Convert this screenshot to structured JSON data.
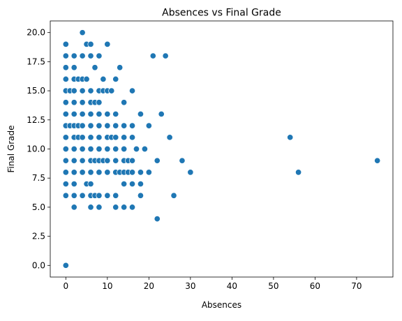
{
  "chart_data": {
    "type": "scatter",
    "title": "Absences vs Final Grade",
    "xlabel": "Absences",
    "ylabel": "Final Grade",
    "xlim": [
      -3.75,
      78.75
    ],
    "ylim": [
      -1.0,
      21.0
    ],
    "xticks": [
      0,
      10,
      20,
      30,
      40,
      50,
      60,
      70
    ],
    "yticks": [
      0.0,
      2.5,
      5.0,
      7.5,
      10.0,
      12.5,
      15.0,
      17.5,
      20.0
    ],
    "xtick_labels": [
      "0",
      "10",
      "20",
      "30",
      "40",
      "50",
      "60",
      "70"
    ],
    "ytick_labels": [
      "0.0",
      "2.5",
      "5.0",
      "7.5",
      "10.0",
      "12.5",
      "15.0",
      "17.5",
      "20.0"
    ],
    "grid": false,
    "marker_color": "#1f77b4",
    "points": [
      [
        0,
        0
      ],
      [
        0,
        6
      ],
      [
        0,
        7
      ],
      [
        0,
        8
      ],
      [
        0,
        9
      ],
      [
        0,
        10
      ],
      [
        0,
        11
      ],
      [
        0,
        12
      ],
      [
        0,
        13
      ],
      [
        0,
        14
      ],
      [
        0,
        15
      ],
      [
        0,
        16
      ],
      [
        0,
        17
      ],
      [
        0,
        18
      ],
      [
        0,
        19
      ],
      [
        1,
        12
      ],
      [
        1,
        15
      ],
      [
        2,
        5
      ],
      [
        2,
        6
      ],
      [
        2,
        7
      ],
      [
        2,
        8
      ],
      [
        2,
        9
      ],
      [
        2,
        10
      ],
      [
        2,
        11
      ],
      [
        2,
        12
      ],
      [
        2,
        13
      ],
      [
        2,
        14
      ],
      [
        2,
        15
      ],
      [
        2,
        16
      ],
      [
        2,
        17
      ],
      [
        2,
        18
      ],
      [
        3,
        11
      ],
      [
        3,
        12
      ],
      [
        3,
        16
      ],
      [
        4,
        6
      ],
      [
        4,
        8
      ],
      [
        4,
        9
      ],
      [
        4,
        10
      ],
      [
        4,
        11
      ],
      [
        4,
        12
      ],
      [
        4,
        13
      ],
      [
        4,
        14
      ],
      [
        4,
        15
      ],
      [
        4,
        16
      ],
      [
        4,
        18
      ],
      [
        4,
        20
      ],
      [
        5,
        7
      ],
      [
        5,
        16
      ],
      [
        5,
        19
      ],
      [
        6,
        5
      ],
      [
        6,
        6
      ],
      [
        6,
        7
      ],
      [
        6,
        8
      ],
      [
        6,
        9
      ],
      [
        6,
        10
      ],
      [
        6,
        11
      ],
      [
        6,
        12
      ],
      [
        6,
        13
      ],
      [
        6,
        14
      ],
      [
        6,
        15
      ],
      [
        6,
        18
      ],
      [
        6,
        19
      ],
      [
        7,
        6
      ],
      [
        7,
        9
      ],
      [
        7,
        14
      ],
      [
        7,
        17
      ],
      [
        8,
        5
      ],
      [
        8,
        6
      ],
      [
        8,
        8
      ],
      [
        8,
        9
      ],
      [
        8,
        10
      ],
      [
        8,
        11
      ],
      [
        8,
        12
      ],
      [
        8,
        13
      ],
      [
        8,
        14
      ],
      [
        8,
        15
      ],
      [
        8,
        18
      ],
      [
        9,
        9
      ],
      [
        9,
        15
      ],
      [
        9,
        16
      ],
      [
        10,
        6
      ],
      [
        10,
        8
      ],
      [
        10,
        9
      ],
      [
        10,
        10
      ],
      [
        10,
        11
      ],
      [
        10,
        12
      ],
      [
        10,
        13
      ],
      [
        10,
        15
      ],
      [
        10,
        19
      ],
      [
        11,
        11
      ],
      [
        11,
        15
      ],
      [
        12,
        5
      ],
      [
        12,
        6
      ],
      [
        12,
        8
      ],
      [
        12,
        9
      ],
      [
        12,
        10
      ],
      [
        12,
        11
      ],
      [
        12,
        12
      ],
      [
        12,
        13
      ],
      [
        12,
        16
      ],
      [
        13,
        8
      ],
      [
        13,
        17
      ],
      [
        14,
        5
      ],
      [
        14,
        7
      ],
      [
        14,
        8
      ],
      [
        14,
        9
      ],
      [
        14,
        10
      ],
      [
        14,
        11
      ],
      [
        14,
        12
      ],
      [
        14,
        14
      ],
      [
        15,
        8
      ],
      [
        15,
        9
      ],
      [
        16,
        5
      ],
      [
        16,
        7
      ],
      [
        16,
        8
      ],
      [
        16,
        9
      ],
      [
        16,
        11
      ],
      [
        16,
        12
      ],
      [
        16,
        15
      ],
      [
        17,
        10
      ],
      [
        18,
        6
      ],
      [
        18,
        7
      ],
      [
        18,
        8
      ],
      [
        18,
        13
      ],
      [
        19,
        10
      ],
      [
        20,
        8
      ],
      [
        20,
        12
      ],
      [
        21,
        18
      ],
      [
        22,
        4
      ],
      [
        22,
        9
      ],
      [
        23,
        13
      ],
      [
        24,
        18
      ],
      [
        25,
        11
      ],
      [
        26,
        6
      ],
      [
        28,
        9
      ],
      [
        30,
        8
      ],
      [
        54,
        11
      ],
      [
        56,
        8
      ],
      [
        75,
        9
      ]
    ]
  }
}
